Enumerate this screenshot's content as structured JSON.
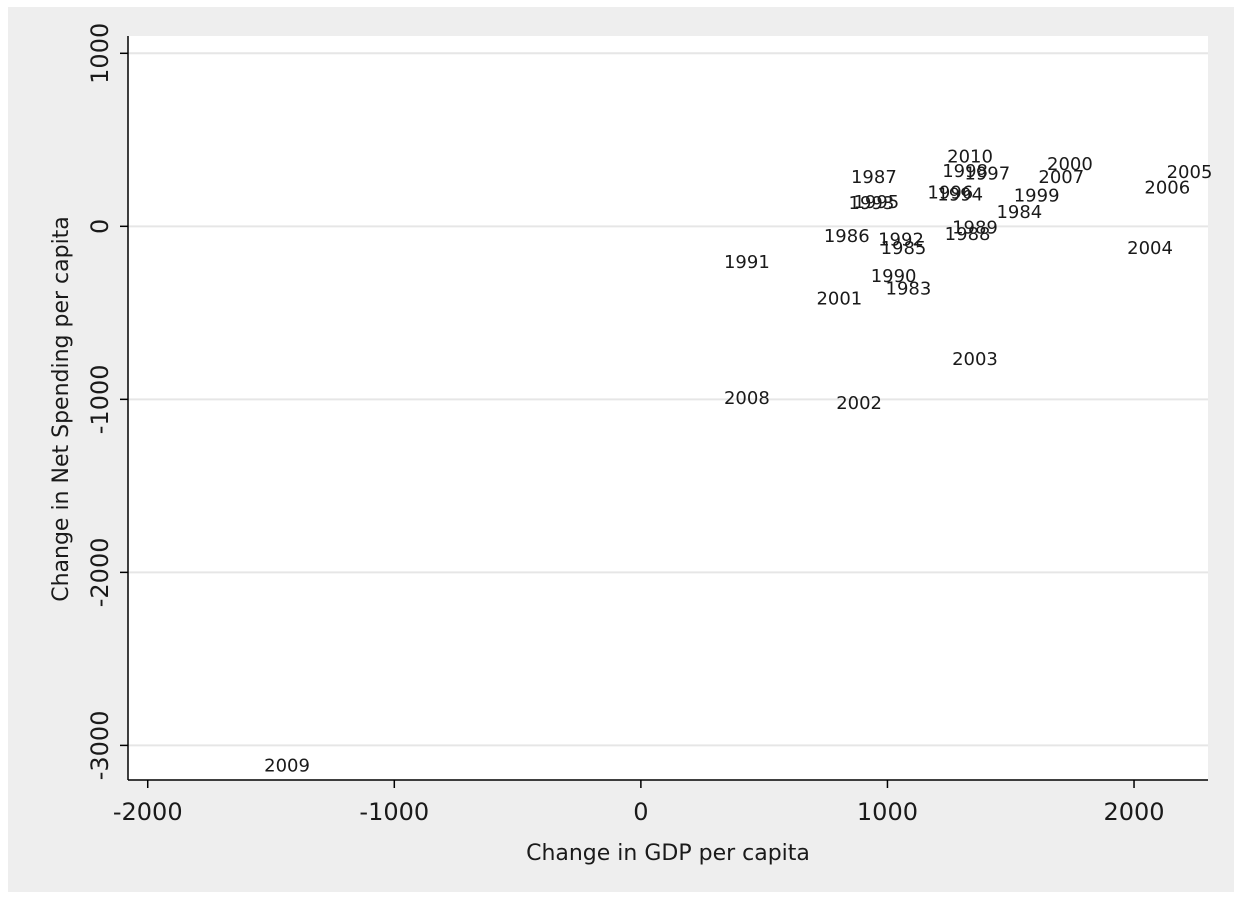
{
  "chart_data": {
    "type": "scatter",
    "title": "",
    "xlabel": "Change in GDP per capita",
    "ylabel": "Change in Net Spending per capita",
    "xlim": [
      -2080,
      2300
    ],
    "ylim": [
      -3200,
      1100
    ],
    "xticks": [
      -2000,
      -1000,
      0,
      1000,
      2000
    ],
    "yticks": [
      1000,
      0,
      -1000,
      -2000,
      -3000
    ],
    "x_tick_labels": [
      "-2000",
      "-1000",
      "0",
      "1000",
      "2000"
    ],
    "y_tick_labels": [
      "1000",
      "0",
      "-1000",
      "-2000",
      "-3000"
    ],
    "grid": true,
    "marker": "year-label",
    "colors": {
      "outer_background": "#eeeeee",
      "plot_background": "#ffffff",
      "grid": "#e6e6e6",
      "text": "#1a1a1a"
    },
    "points": [
      {
        "label": "1983",
        "x": 1085,
        "y": -355
      },
      {
        "label": "1984",
        "x": 1535,
        "y": 90
      },
      {
        "label": "1985",
        "x": 1065,
        "y": -120
      },
      {
        "label": "1986",
        "x": 835,
        "y": -50
      },
      {
        "label": "1987",
        "x": 945,
        "y": 290
      },
      {
        "label": "1988",
        "x": 1325,
        "y": -40
      },
      {
        "label": "1989",
        "x": 1355,
        "y": 0
      },
      {
        "label": "1990",
        "x": 1025,
        "y": -280
      },
      {
        "label": "1991",
        "x": 430,
        "y": -200
      },
      {
        "label": "1992",
        "x": 1055,
        "y": -70
      },
      {
        "label": "1993",
        "x": 935,
        "y": 140
      },
      {
        "label": "1994",
        "x": 1295,
        "y": 190
      },
      {
        "label": "1995",
        "x": 955,
        "y": 145
      },
      {
        "label": "1996",
        "x": 1255,
        "y": 200
      },
      {
        "label": "1997",
        "x": 1405,
        "y": 310
      },
      {
        "label": "1998",
        "x": 1315,
        "y": 325
      },
      {
        "label": "1999",
        "x": 1605,
        "y": 185
      },
      {
        "label": "2000",
        "x": 1740,
        "y": 365
      },
      {
        "label": "2001",
        "x": 805,
        "y": -410
      },
      {
        "label": "2002",
        "x": 885,
        "y": -1015
      },
      {
        "label": "2003",
        "x": 1355,
        "y": -760
      },
      {
        "label": "2004",
        "x": 2065,
        "y": -120
      },
      {
        "label": "2005",
        "x": 2225,
        "y": 320
      },
      {
        "label": "2006",
        "x": 2135,
        "y": 230
      },
      {
        "label": "2007",
        "x": 1705,
        "y": 290
      },
      {
        "label": "2008",
        "x": 430,
        "y": -985
      },
      {
        "label": "2009",
        "x": -1435,
        "y": -3110
      },
      {
        "label": "2010",
        "x": 1335,
        "y": 410
      }
    ]
  }
}
